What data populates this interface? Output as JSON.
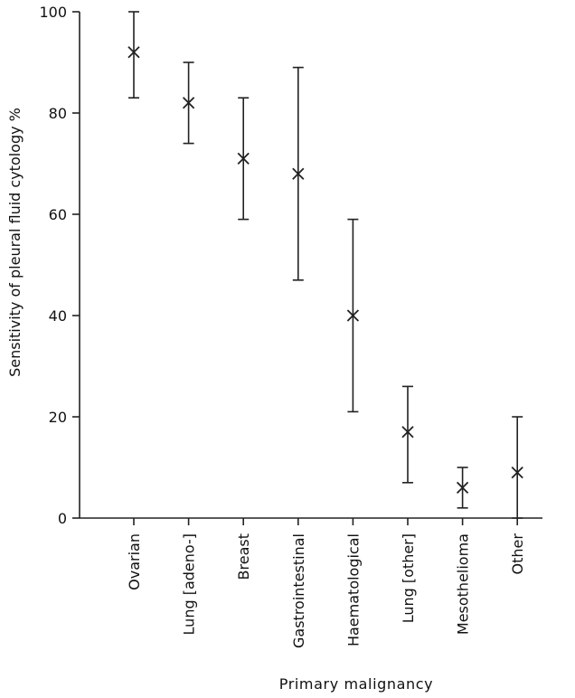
{
  "chart_data": {
    "type": "scatter",
    "title": "",
    "xlabel": "Primary malignancy",
    "ylabel": "Sensitivity of pleural fluid cytology %",
    "ylim": [
      0,
      100
    ],
    "yticks": [
      "0",
      "20",
      "40",
      "60",
      "80",
      "100"
    ],
    "grid": false,
    "categories": [
      "Ovarian",
      "Lung [adeno-]",
      "Breast",
      "Gastrointestinal",
      "Haematological",
      "Lung [other]",
      "Mesothelioma",
      "Other"
    ],
    "values": [
      92,
      82,
      71,
      68,
      40,
      17,
      6,
      9
    ],
    "lower": [
      83,
      74,
      59,
      47,
      21,
      7,
      2,
      0
    ],
    "upper": [
      100,
      90,
      83,
      89,
      59,
      26,
      10,
      20
    ],
    "marker": "x"
  }
}
